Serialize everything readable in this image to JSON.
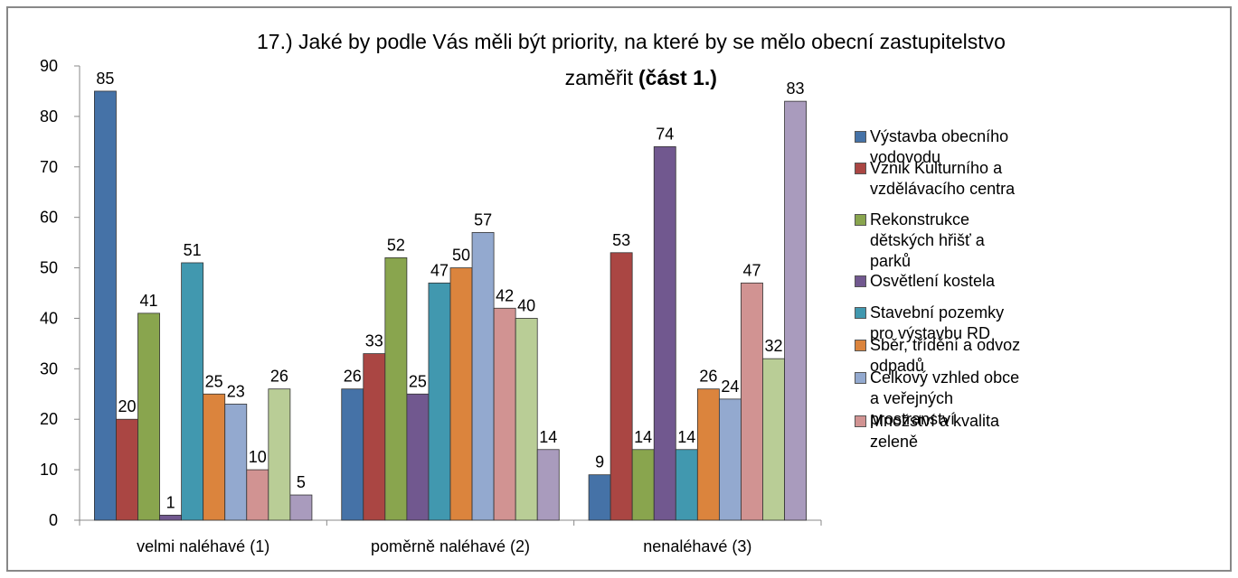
{
  "chart_data": {
    "type": "bar",
    "title": [
      "17.) Jaké by podle Vás měli být priority, na které by se mělo obecní zastupitelstvo",
      "zaměřit"
    ],
    "title_bold": "(část 1.)",
    "categories": [
      "velmi naléhavé (1)",
      "poměrně naléhavé (2)",
      "nenaléhavé (3)"
    ],
    "series": [
      {
        "name": "Výstavba obecního vodovodu",
        "color": "#4572a7",
        "values": [
          85,
          26,
          9
        ]
      },
      {
        "name": "Vznik Kulturního a vzdělávacího centra",
        "color": "#aa4643",
        "values": [
          20,
          33,
          53
        ]
      },
      {
        "name": "Rekonstrukce dětských hřišť a parků",
        "color": "#89a54e",
        "values": [
          41,
          52,
          14
        ]
      },
      {
        "name": "Osvětlení kostela",
        "color": "#71588f",
        "values": [
          1,
          25,
          74
        ]
      },
      {
        "name": "Stavební pozemky pro výstavbu RD",
        "color": "#4198af",
        "values": [
          51,
          47,
          14
        ]
      },
      {
        "name": "Sběr, třídění a odvoz odpadů",
        "color": "#db843d",
        "values": [
          25,
          50,
          26
        ]
      },
      {
        "name": "Celkový vzhled obce a veřejných prostranství",
        "color": "#93a9cf",
        "values": [
          23,
          57,
          24
        ]
      },
      {
        "name": "Množství a kvalita zeleně",
        "color": "#d19392",
        "values": [
          10,
          42,
          47
        ]
      },
      {
        "color": "#b9cd96",
        "values": [
          26,
          40,
          32
        ]
      },
      {
        "color": "#a99bbd",
        "values": [
          5,
          14,
          83
        ]
      }
    ],
    "ylim": [
      0,
      90
    ],
    "yticks": [
      0,
      10,
      20,
      30,
      40,
      50,
      60,
      70,
      80,
      90
    ],
    "grid": false,
    "legend": "right"
  }
}
